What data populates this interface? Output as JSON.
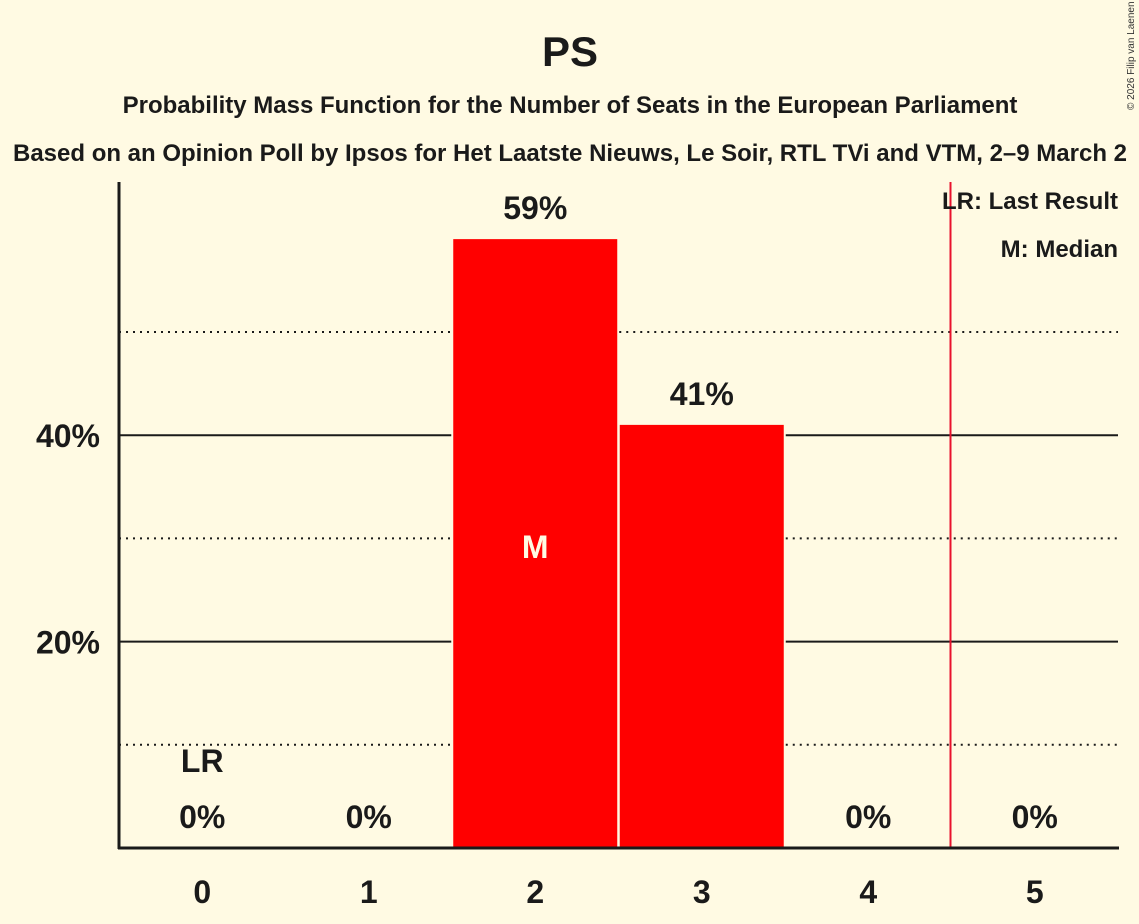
{
  "colors": {
    "background": "#fffae3",
    "bar": "#ff0000",
    "last_result_line": "#e8112d",
    "text": "#1a1a1a",
    "median_label": "#fffae3"
  },
  "copyright": "© 2026 Filip van Laenen",
  "legend": {
    "last_result": "LR: Last Result",
    "median": "M: Median"
  },
  "chart_data": {
    "type": "bar",
    "title": "PS",
    "subtitle": "Probability Mass Function for the Number of Seats in the European Parliament",
    "subsubtitle": "Based on an Opinion Poll by Ipsos for Het Laatste Nieuws, Le Soir, RTL TVi and VTM, 2–9 March 2",
    "xlabel": "",
    "ylabel": "",
    "categories": [
      "0",
      "1",
      "2",
      "3",
      "4",
      "5"
    ],
    "values": [
      0,
      0,
      59,
      41,
      0,
      0
    ],
    "value_labels": [
      "0%",
      "0%",
      "59%",
      "41%",
      "0%",
      "0%"
    ],
    "y_ticks": [
      {
        "value": 20,
        "label": "20%"
      },
      {
        "value": 40,
        "label": "40%"
      }
    ],
    "minor_gridlines": [
      10,
      30,
      50
    ],
    "ylim": [
      0,
      64
    ],
    "grid": true,
    "last_result": {
      "seats": 0,
      "label": "LR",
      "line_position": 4.5
    },
    "median": {
      "seats": 2,
      "label": "M"
    },
    "legend_position": "top-right"
  }
}
